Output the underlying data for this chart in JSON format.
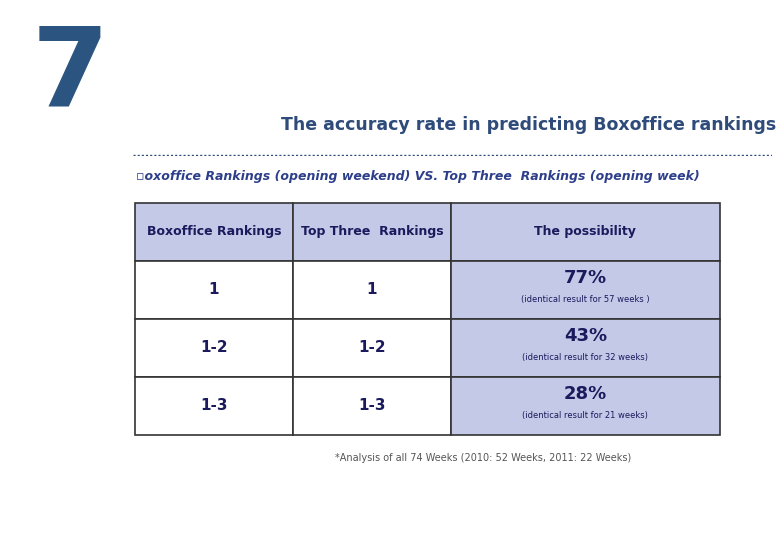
{
  "title": "The accuracy rate in predicting Boxoffice rankings and Top Three",
  "number": "7",
  "subtitle": "▫oxoffice Rankings (opening weekend) VS. Top Three  Rankings (opening week)",
  "col_headers": [
    "Boxoffice Rankings",
    "Top Three  Rankings",
    "The possibility"
  ],
  "rows": [
    {
      "col1": "1",
      "col2": "1",
      "pct": "77%",
      "sub": "(identical result for 57 weeks )"
    },
    {
      "col1": "1-2",
      "col2": "1-2",
      "pct": "43%",
      "sub": "(identical result for 32 weeks)"
    },
    {
      "col1": "1-3",
      "col2": "1-3",
      "pct": "28%",
      "sub": "(identical result for 21 weeks)"
    }
  ],
  "footnote": "*Analysis of all 74 Weeks (2010: 52 Weeks, 2011: 22 Weeks)",
  "header_bg": "#c5c9e8",
  "border_color": "#333333",
  "number_color": "#2b5580",
  "title_color": "#2e4b7a",
  "subtitle_color": "#2e3f8a",
  "table_text_color": "#1a1a5c",
  "pct_color": "#1a1a5c",
  "footnote_color": "#555555",
  "bg_color": "#ffffff",
  "dotted_color": "#2e4b7a"
}
